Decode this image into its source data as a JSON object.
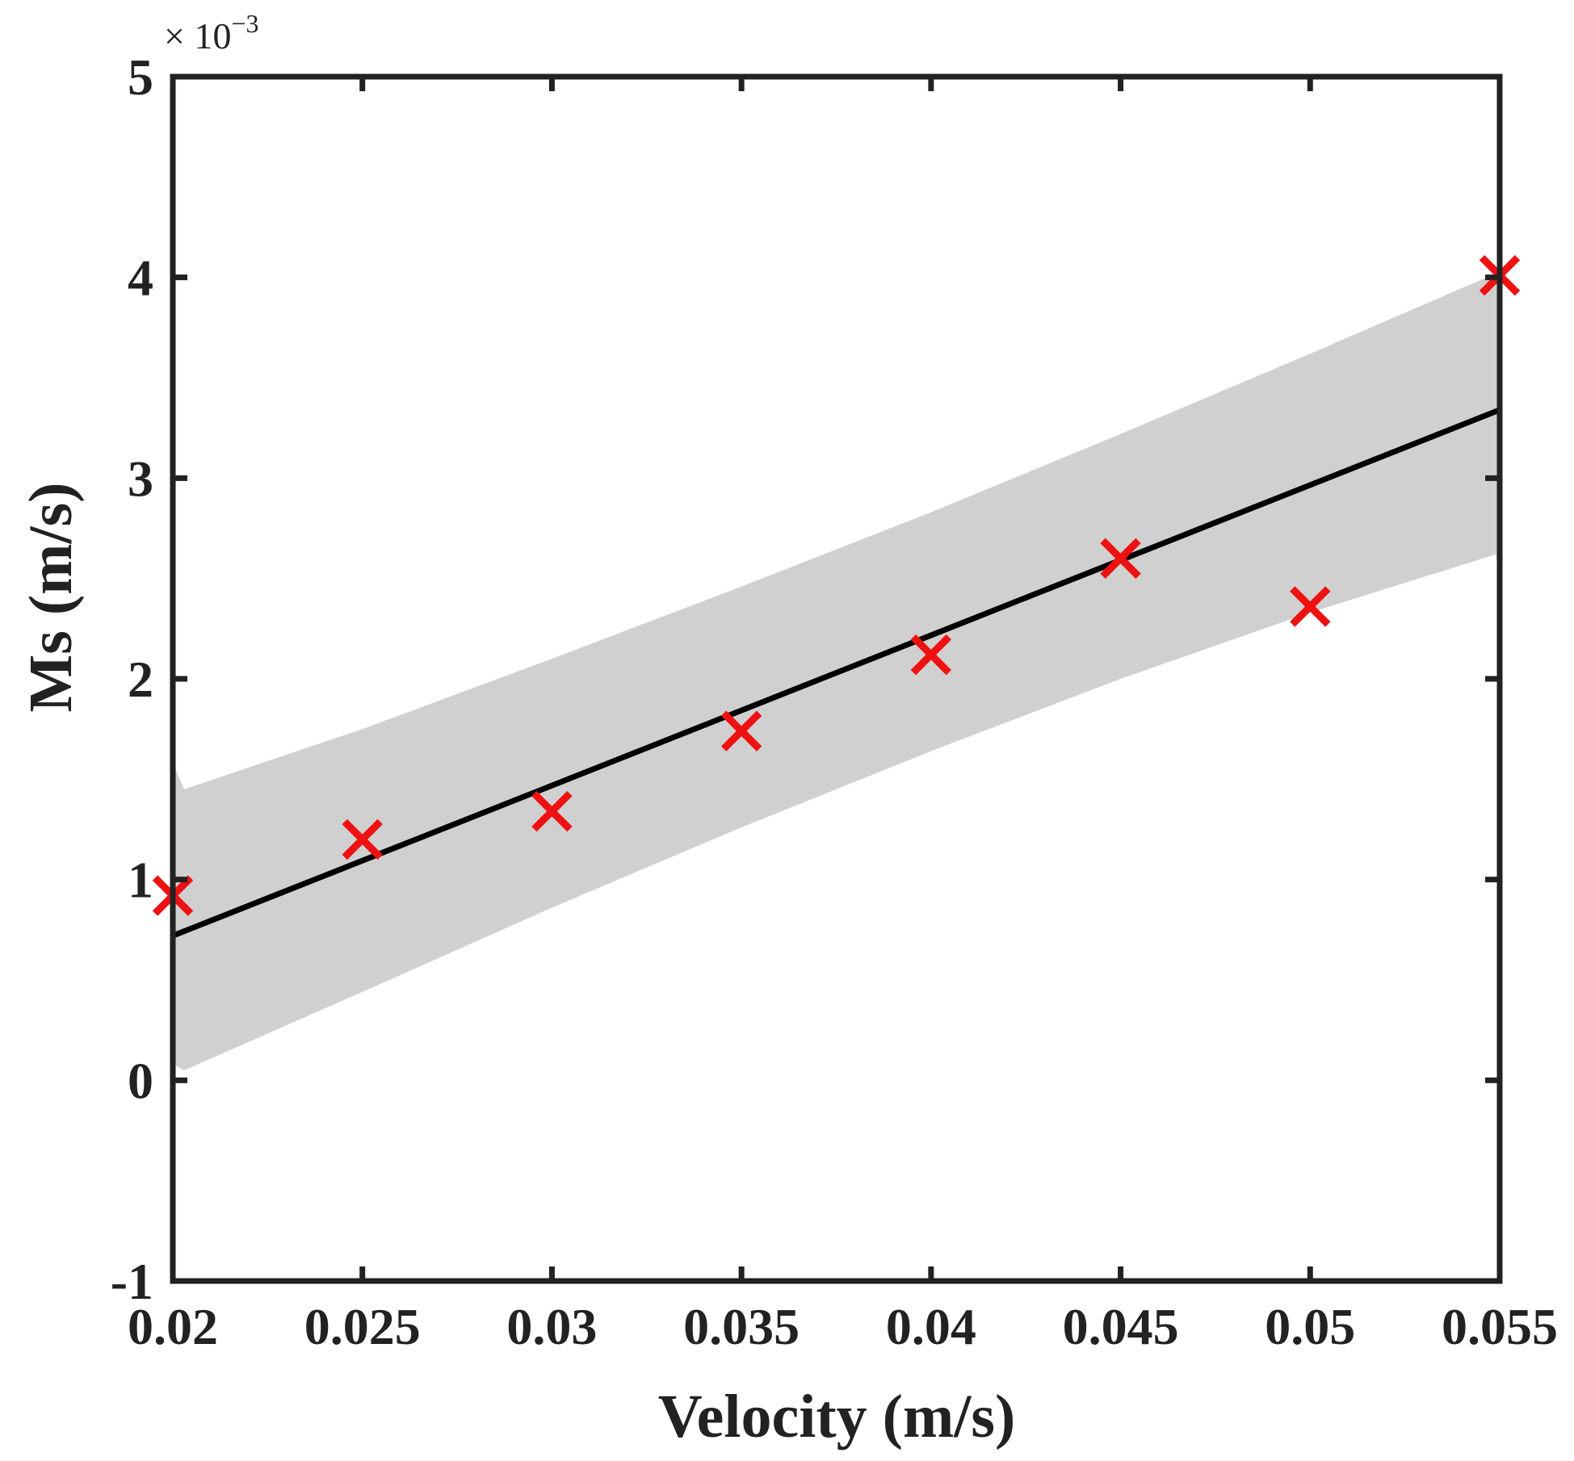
{
  "chart_data": {
    "type": "scatter",
    "xlabel": "Velocity (m/s)",
    "ylabel": "Ms (m/s)",
    "y_multiplier_base": "× 10",
    "y_multiplier_exponent": "−3",
    "xlim": [
      0.02,
      0.055
    ],
    "ylim": [
      -1,
      5
    ],
    "x_ticks": [
      0.02,
      0.025,
      0.03,
      0.035,
      0.04,
      0.045,
      0.05,
      0.055
    ],
    "x_tick_labels": [
      "0.02",
      "0.025",
      "0.03",
      "0.035",
      "0.04",
      "0.045",
      "0.05",
      "0.055"
    ],
    "y_ticks": [
      -1,
      0,
      1,
      2,
      3,
      4,
      5
    ],
    "y_tick_labels": [
      "-1",
      "0",
      "1",
      "2",
      "3",
      "4",
      "5"
    ],
    "grid": false,
    "legend": "none",
    "series": [
      {
        "kind": "scatter",
        "marker": "x",
        "color": "#ee1111",
        "x": [
          0.02,
          0.025,
          0.03,
          0.035,
          0.04,
          0.045,
          0.05,
          0.055
        ],
        "y": [
          0.92,
          1.2,
          1.34,
          1.74,
          2.12,
          2.6,
          2.36,
          4.01
        ]
      },
      {
        "kind": "line",
        "color": "#000000",
        "x": [
          0.02,
          0.055
        ],
        "y": [
          0.72,
          3.34
        ]
      },
      {
        "kind": "band",
        "color": "#d0d0d0",
        "x": [
          0.02,
          0.0203,
          0.025,
          0.03,
          0.035,
          0.04,
          0.045,
          0.05,
          0.0549,
          0.055
        ],
        "upper": [
          1.58,
          1.45,
          1.75,
          2.1,
          2.46,
          2.83,
          3.22,
          3.62,
          4.02,
          4.0
        ],
        "lower": [
          0.08,
          0.05,
          0.44,
          0.86,
          1.26,
          1.64,
          2.0,
          2.33,
          2.62,
          2.45
        ]
      }
    ]
  }
}
